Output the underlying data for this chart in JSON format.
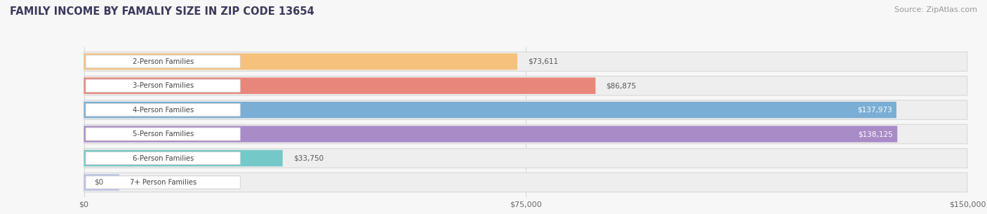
{
  "title": "FAMILY INCOME BY FAMALIY SIZE IN ZIP CODE 13654",
  "source": "Source: ZipAtlas.com",
  "categories": [
    "2-Person Families",
    "3-Person Families",
    "4-Person Families",
    "5-Person Families",
    "6-Person Families",
    "7+ Person Families"
  ],
  "values": [
    73611,
    86875,
    137973,
    138125,
    33750,
    0
  ],
  "value_labels": [
    "$73,611",
    "$86,875",
    "$137,973",
    "$138,125",
    "$33,750",
    "$0"
  ],
  "bar_colors": [
    "#f5c27e",
    "#e8867a",
    "#7aaed4",
    "#a98bc8",
    "#74c8c8",
    "#b8c2e8"
  ],
  "bar_bg_color": "#efefef",
  "xmax": 150000,
  "xticks": [
    0,
    75000,
    150000
  ],
  "xtick_labels": [
    "$0",
    "$75,000",
    "$150,000"
  ],
  "title_color": "#3a3a5c",
  "title_fontsize": 10.5,
  "source_fontsize": 8,
  "value_label_inside_threshold": 120000,
  "fig_bg": "#f7f7f7"
}
